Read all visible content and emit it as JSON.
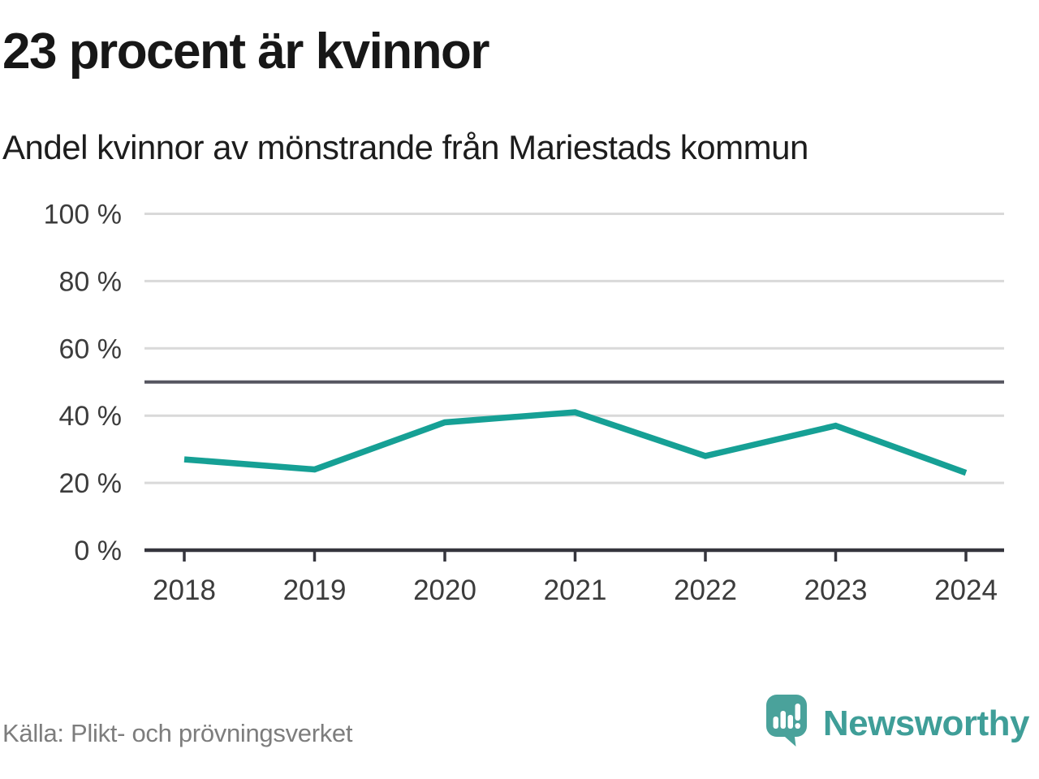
{
  "header": {
    "title": "23 procent är kvinnor",
    "subtitle": "Andel kvinnor av mönstrande från Mariestads kommun"
  },
  "chart_data": {
    "type": "line",
    "title": "23 procent är kvinnor",
    "subtitle": "Andel kvinnor av mönstrande från Mariestads kommun",
    "categories": [
      "2018",
      "2019",
      "2020",
      "2021",
      "2022",
      "2023",
      "2024"
    ],
    "series": [
      {
        "name": "Andel kvinnor av mönstrande",
        "values": [
          27,
          24,
          38,
          41,
          28,
          37,
          23
        ]
      }
    ],
    "unit": "%",
    "ylim": [
      0,
      100
    ],
    "yticks": [
      0,
      20,
      40,
      60,
      80,
      100
    ],
    "ytick_format": "{v} %",
    "reference_line": 50,
    "grid": true,
    "legend": "none",
    "line_color": "#16a095",
    "gridline_color": "#d9d9d9",
    "reference_line_color": "#565660",
    "axis_color": "#35353d",
    "tick_label_color": "#3c3c3c"
  },
  "footer": {
    "source": "Källa: Plikt- och prövningsverket",
    "brand": "Newsworthy",
    "brand_color": "#3f9e98"
  }
}
